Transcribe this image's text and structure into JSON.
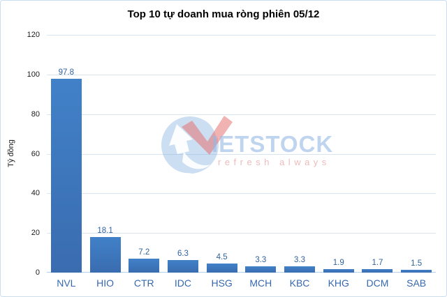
{
  "window": {
    "background": "#ffffff",
    "border_color": "#cadef2"
  },
  "chart_data": {
    "type": "bar",
    "title": "Top 10 tự doanh mua ròng phiên 05/12",
    "xlabel": "",
    "ylabel": "Tỷ đồng",
    "categories": [
      "NVL",
      "HIO",
      "CTR",
      "IDC",
      "HSG",
      "MCH",
      "KBC",
      "KHG",
      "DCM",
      "SAB"
    ],
    "values": [
      97.8,
      18.1,
      7.2,
      6.3,
      4.5,
      3.3,
      3.3,
      1.9,
      1.7,
      1.5
    ],
    "value_labels": [
      "97.8",
      "18.1",
      "7.2",
      "6.3",
      "4.5",
      "3.3",
      "3.3",
      "1.9",
      "1.7",
      "1.5"
    ],
    "yticks": [
      0,
      20,
      40,
      60,
      80,
      100,
      120
    ],
    "ylim": [
      0,
      120
    ],
    "grid": true,
    "legend": false,
    "bar_color_top": "#4181c8",
    "bar_color_bottom": "#3a6cb0",
    "value_label_color": "#31639c",
    "category_label_color": "#3668ae",
    "tick_label_color": "#1a1a1a",
    "gridline_color": "#d8e4ee",
    "baseline_color": "#b7cee6",
    "title_color": "#000000"
  },
  "watermark": {
    "brand_text": "IETSTOCK",
    "tagline": "refresh always",
    "logo_blue": "#80acde",
    "logo_red": "#e57373",
    "text_blue": "#94b8e5",
    "text_red": "#e39696"
  }
}
